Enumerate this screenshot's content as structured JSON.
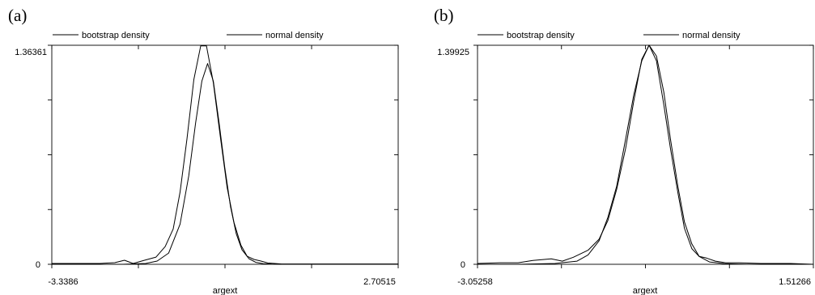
{
  "chart_data": [
    {
      "type": "line",
      "panel_label": "(a)",
      "legend": [
        "bootstrap density",
        "normal density"
      ],
      "xlabel": "argext",
      "ylabel": "",
      "x_tick_labels": [
        "-3.3386",
        "2.70515"
      ],
      "y_tick_labels": [
        "0",
        "1.36361"
      ],
      "xlim": [
        -3.3386,
        2.70515
      ],
      "ylim": [
        0,
        1.36361
      ],
      "series": [
        {
          "name": "bootstrap density",
          "x": [
            -3.3386,
            -2.92,
            -2.5,
            -2.24,
            -2.07,
            -1.92,
            -1.72,
            -1.52,
            -1.36,
            -1.22,
            -1.1,
            -0.98,
            -0.86,
            -0.74,
            -0.64,
            -0.52,
            -0.4,
            -0.28,
            -0.16,
            -0.04,
            0.07,
            0.19,
            0.31,
            0.43,
            0.55,
            0.67,
            0.79,
            0.98,
            1.25,
            1.6,
            2.1,
            2.5,
            2.70515
          ],
          "values": [
            0.005,
            0.005,
            0.005,
            0.01,
            0.025,
            0.005,
            0.025,
            0.045,
            0.11,
            0.22,
            0.45,
            0.78,
            1.15,
            1.36,
            1.36,
            1.13,
            0.8,
            0.48,
            0.26,
            0.12,
            0.05,
            0.03,
            0.02,
            0.008,
            0.005,
            0.002,
            0.002,
            0.002,
            0.002,
            0.002,
            0.002,
            0.002,
            0.002
          ]
        },
        {
          "name": "normal density",
          "x": [
            -3.3386,
            -2.9,
            -2.5,
            -2.1,
            -1.7,
            -1.5,
            -1.3,
            -1.1,
            -0.95,
            -0.83,
            -0.72,
            -0.62,
            -0.52,
            -0.42,
            -0.32,
            -0.22,
            -0.12,
            -0.02,
            0.1,
            0.22,
            0.35,
            0.5,
            0.7,
            1.0,
            1.5,
            2.0,
            2.70515
          ],
          "values": [
            0.0,
            0.0,
            0.0,
            0.0,
            0.005,
            0.02,
            0.07,
            0.25,
            0.55,
            0.88,
            1.14,
            1.25,
            1.14,
            0.88,
            0.6,
            0.36,
            0.19,
            0.09,
            0.035,
            0.012,
            0.004,
            0.001,
            0.0,
            0.0,
            0.0,
            0.0,
            0.0
          ]
        }
      ]
    },
    {
      "type": "line",
      "panel_label": "(b)",
      "legend": [
        "bootstrap density",
        "normal density"
      ],
      "xlabel": "argext",
      "ylabel": "",
      "x_tick_labels": [
        "-3.05258",
        "1.51266"
      ],
      "y_tick_labels": [
        "0",
        "1.39925"
      ],
      "xlim": [
        -3.05258,
        1.51266
      ],
      "ylim": [
        0,
        1.39925
      ],
      "series": [
        {
          "name": "bootstrap density",
          "x": [
            -3.05258,
            -2.75,
            -2.5,
            -2.3,
            -2.05,
            -1.9,
            -1.75,
            -1.55,
            -1.4,
            -1.28,
            -1.16,
            -1.04,
            -0.93,
            -0.82,
            -0.72,
            -0.62,
            -0.52,
            -0.43,
            -0.33,
            -0.24,
            -0.14,
            -0.04,
            0.06,
            0.18,
            0.32,
            0.5,
            0.8,
            1.2,
            1.51266
          ],
          "values": [
            0.005,
            0.01,
            0.01,
            0.025,
            0.035,
            0.02,
            0.045,
            0.09,
            0.16,
            0.28,
            0.48,
            0.74,
            1.04,
            1.31,
            1.4,
            1.3,
            1.02,
            0.74,
            0.46,
            0.23,
            0.1,
            0.05,
            0.04,
            0.02,
            0.01,
            0.01,
            0.005,
            0.005,
            0.0
          ]
        },
        {
          "name": "normal density",
          "x": [
            -3.05258,
            -2.5,
            -2.0,
            -1.7,
            -1.55,
            -1.4,
            -1.28,
            -1.16,
            -1.04,
            -0.93,
            -0.82,
            -0.72,
            -0.62,
            -0.52,
            -0.43,
            -0.33,
            -0.24,
            -0.14,
            -0.04,
            0.1,
            0.3,
            0.6,
            1.0,
            1.51266
          ],
          "values": [
            0.0,
            0.0,
            0.005,
            0.02,
            0.06,
            0.15,
            0.3,
            0.5,
            0.8,
            1.08,
            1.3,
            1.4,
            1.33,
            1.1,
            0.8,
            0.5,
            0.27,
            0.13,
            0.05,
            0.015,
            0.004,
            0.0,
            0.0,
            0.0
          ]
        }
      ]
    }
  ]
}
